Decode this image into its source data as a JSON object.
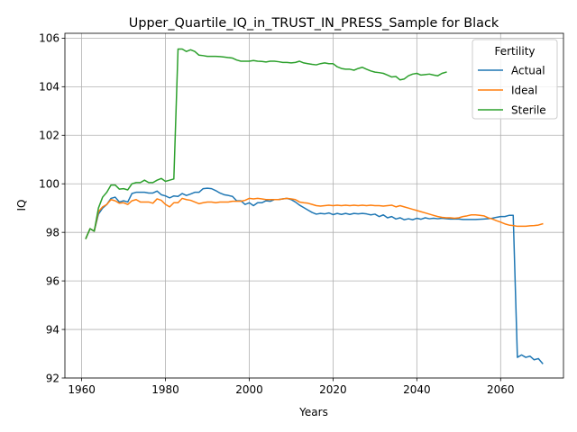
{
  "chart_data": {
    "type": "line",
    "title": "Upper_Quartile_IQ_in_TRUST_IN_PRESS_Sample for Black",
    "xlabel": "Years",
    "ylabel": "IQ",
    "xlim": [
      1956,
      2075
    ],
    "ylim": [
      92,
      106.2
    ],
    "xticks": [
      1960,
      1980,
      2000,
      2020,
      2040,
      2060
    ],
    "yticks": [
      92,
      94,
      96,
      98,
      100,
      102,
      104,
      106
    ],
    "grid": true,
    "legend": {
      "title": "Fertility",
      "placement": "top-right"
    },
    "series": [
      {
        "name": "Actual",
        "color": "#1f77b4",
        "x": [
          1961,
          1962,
          1963,
          1964,
          1965,
          1966,
          1967,
          1968,
          1969,
          1970,
          1971,
          1972,
          1973,
          1974,
          1975,
          1976,
          1977,
          1978,
          1979,
          1980,
          1981,
          1982,
          1983,
          1984,
          1985,
          1986,
          1987,
          1988,
          1989,
          1990,
          1991,
          1992,
          1993,
          1994,
          1995,
          1996,
          1997,
          1998,
          1999,
          2000,
          2001,
          2002,
          2003,
          2004,
          2005,
          2006,
          2007,
          2008,
          2009,
          2010,
          2011,
          2012,
          2013,
          2014,
          2015,
          2016,
          2017,
          2018,
          2019,
          2020,
          2021,
          2022,
          2023,
          2024,
          2025,
          2026,
          2027,
          2028,
          2029,
          2030,
          2031,
          2032,
          2033,
          2034,
          2035,
          2036,
          2037,
          2038,
          2039,
          2040,
          2041,
          2042,
          2043,
          2044,
          2045,
          2046,
          2047,
          2048,
          2049,
          2050,
          2051,
          2052,
          2053,
          2054,
          2055,
          2056,
          2057,
          2058,
          2059,
          2060,
          2061,
          2062,
          2063,
          2064,
          2065,
          2066,
          2067,
          2068,
          2069,
          2070
        ],
        "values": [
          97.75,
          98.15,
          98.05,
          98.75,
          99.0,
          99.15,
          99.4,
          99.45,
          99.25,
          99.3,
          99.25,
          99.6,
          99.65,
          99.65,
          99.65,
          99.62,
          99.62,
          99.7,
          99.55,
          99.5,
          99.42,
          99.5,
          99.48,
          99.6,
          99.52,
          99.58,
          99.65,
          99.65,
          99.8,
          99.82,
          99.8,
          99.72,
          99.62,
          99.55,
          99.52,
          99.48,
          99.3,
          99.3,
          99.15,
          99.22,
          99.1,
          99.22,
          99.22,
          99.3,
          99.28,
          99.35,
          99.35,
          99.38,
          99.4,
          99.35,
          99.25,
          99.12,
          99.02,
          98.92,
          98.82,
          98.75,
          98.78,
          98.76,
          98.8,
          98.73,
          98.78,
          98.74,
          98.78,
          98.74,
          98.78,
          98.76,
          98.78,
          98.76,
          98.72,
          98.75,
          98.65,
          98.72,
          98.6,
          98.65,
          98.55,
          98.6,
          98.52,
          98.56,
          98.52,
          98.58,
          98.54,
          98.6,
          98.56,
          98.58,
          98.56,
          98.58,
          98.56,
          98.55,
          98.55,
          98.55,
          98.53,
          98.53,
          98.53,
          98.53,
          98.54,
          98.55,
          98.56,
          98.58,
          98.62,
          98.65,
          98.65,
          98.7,
          98.7,
          92.85,
          92.95,
          92.85,
          92.9,
          92.75,
          92.8,
          92.6
        ]
      },
      {
        "name": "Ideal",
        "color": "#ff7f0e",
        "x": [
          1961,
          1962,
          1963,
          1964,
          1965,
          1966,
          1967,
          1968,
          1969,
          1970,
          1971,
          1972,
          1973,
          1974,
          1975,
          1976,
          1977,
          1978,
          1979,
          1980,
          1981,
          1982,
          1983,
          1984,
          1985,
          1986,
          1987,
          1988,
          1989,
          1990,
          1991,
          1992,
          1993,
          1994,
          1995,
          1996,
          1997,
          1998,
          1999,
          2000,
          2001,
          2002,
          2003,
          2004,
          2005,
          2006,
          2007,
          2008,
          2009,
          2010,
          2011,
          2012,
          2013,
          2014,
          2015,
          2016,
          2017,
          2018,
          2019,
          2020,
          2021,
          2022,
          2023,
          2024,
          2025,
          2026,
          2027,
          2028,
          2029,
          2030,
          2031,
          2032,
          2033,
          2034,
          2035,
          2036,
          2037,
          2038,
          2039,
          2040,
          2041,
          2042,
          2043,
          2044,
          2045,
          2046,
          2047,
          2048,
          2049,
          2050,
          2051,
          2052,
          2053,
          2054,
          2055,
          2056,
          2057,
          2058,
          2059,
          2060,
          2061,
          2062,
          2063,
          2064,
          2065,
          2066,
          2067,
          2068,
          2069,
          2070
        ],
        "values": [
          97.75,
          98.15,
          98.05,
          98.85,
          99.05,
          99.15,
          99.35,
          99.3,
          99.2,
          99.22,
          99.15,
          99.3,
          99.35,
          99.25,
          99.25,
          99.25,
          99.2,
          99.38,
          99.32,
          99.15,
          99.05,
          99.22,
          99.22,
          99.4,
          99.35,
          99.32,
          99.25,
          99.18,
          99.22,
          99.25,
          99.25,
          99.22,
          99.25,
          99.25,
          99.25,
          99.28,
          99.28,
          99.28,
          99.32,
          99.4,
          99.38,
          99.4,
          99.38,
          99.35,
          99.35,
          99.35,
          99.35,
          99.38,
          99.4,
          99.38,
          99.35,
          99.25,
          99.22,
          99.2,
          99.15,
          99.1,
          99.08,
          99.1,
          99.12,
          99.1,
          99.12,
          99.1,
          99.12,
          99.1,
          99.12,
          99.1,
          99.12,
          99.1,
          99.12,
          99.1,
          99.1,
          99.08,
          99.1,
          99.12,
          99.05,
          99.1,
          99.05,
          99.0,
          98.95,
          98.9,
          98.85,
          98.8,
          98.75,
          98.7,
          98.65,
          98.62,
          98.6,
          98.6,
          98.58,
          98.6,
          98.65,
          98.68,
          98.72,
          98.72,
          98.7,
          98.68,
          98.6,
          98.55,
          98.48,
          98.42,
          98.35,
          98.3,
          98.28,
          98.25,
          98.25,
          98.25,
          98.27,
          98.28,
          98.3,
          98.35
        ]
      },
      {
        "name": "Sterile",
        "color": "#2ca02c",
        "x": [
          1961,
          1962,
          1963,
          1964,
          1965,
          1966,
          1967,
          1968,
          1969,
          1970,
          1971,
          1972,
          1973,
          1974,
          1975,
          1976,
          1977,
          1978,
          1979,
          1980,
          1981,
          1982,
          1983,
          1984,
          1985,
          1986,
          1987,
          1988,
          1989,
          1990,
          1991,
          1992,
          1993,
          1994,
          1995,
          1996,
          1997,
          1998,
          1999,
          2000,
          2001,
          2002,
          2003,
          2004,
          2005,
          2006,
          2007,
          2008,
          2009,
          2010,
          2011,
          2012,
          2013,
          2014,
          2015,
          2016,
          2017,
          2018,
          2019,
          2020,
          2021,
          2022,
          2023,
          2024,
          2025,
          2026,
          2027,
          2028,
          2029,
          2030,
          2031,
          2032,
          2033,
          2034,
          2035,
          2036,
          2037,
          2038,
          2039,
          2040,
          2041,
          2042,
          2043,
          2044,
          2045,
          2046,
          2047
        ],
        "values": [
          97.75,
          98.15,
          98.05,
          99.0,
          99.45,
          99.65,
          99.95,
          99.95,
          99.78,
          99.8,
          99.75,
          100.0,
          100.05,
          100.05,
          100.15,
          100.05,
          100.05,
          100.15,
          100.22,
          100.1,
          100.15,
          100.2,
          105.55,
          105.55,
          105.45,
          105.52,
          105.45,
          105.3,
          105.28,
          105.25,
          105.25,
          105.25,
          105.24,
          105.22,
          105.2,
          105.18,
          105.1,
          105.05,
          105.05,
          105.05,
          105.08,
          105.05,
          105.04,
          105.02,
          105.05,
          105.05,
          105.03,
          105.0,
          105.0,
          104.98,
          105.0,
          105.05,
          104.98,
          104.95,
          104.92,
          104.9,
          104.95,
          104.98,
          104.95,
          104.95,
          104.82,
          104.75,
          104.72,
          104.72,
          104.68,
          104.75,
          104.8,
          104.72,
          104.65,
          104.6,
          104.58,
          104.55,
          104.48,
          104.4,
          104.42,
          104.28,
          104.32,
          104.45,
          104.52,
          104.55,
          104.48,
          104.5,
          104.52,
          104.48,
          104.45,
          104.55,
          104.6
        ]
      }
    ]
  }
}
